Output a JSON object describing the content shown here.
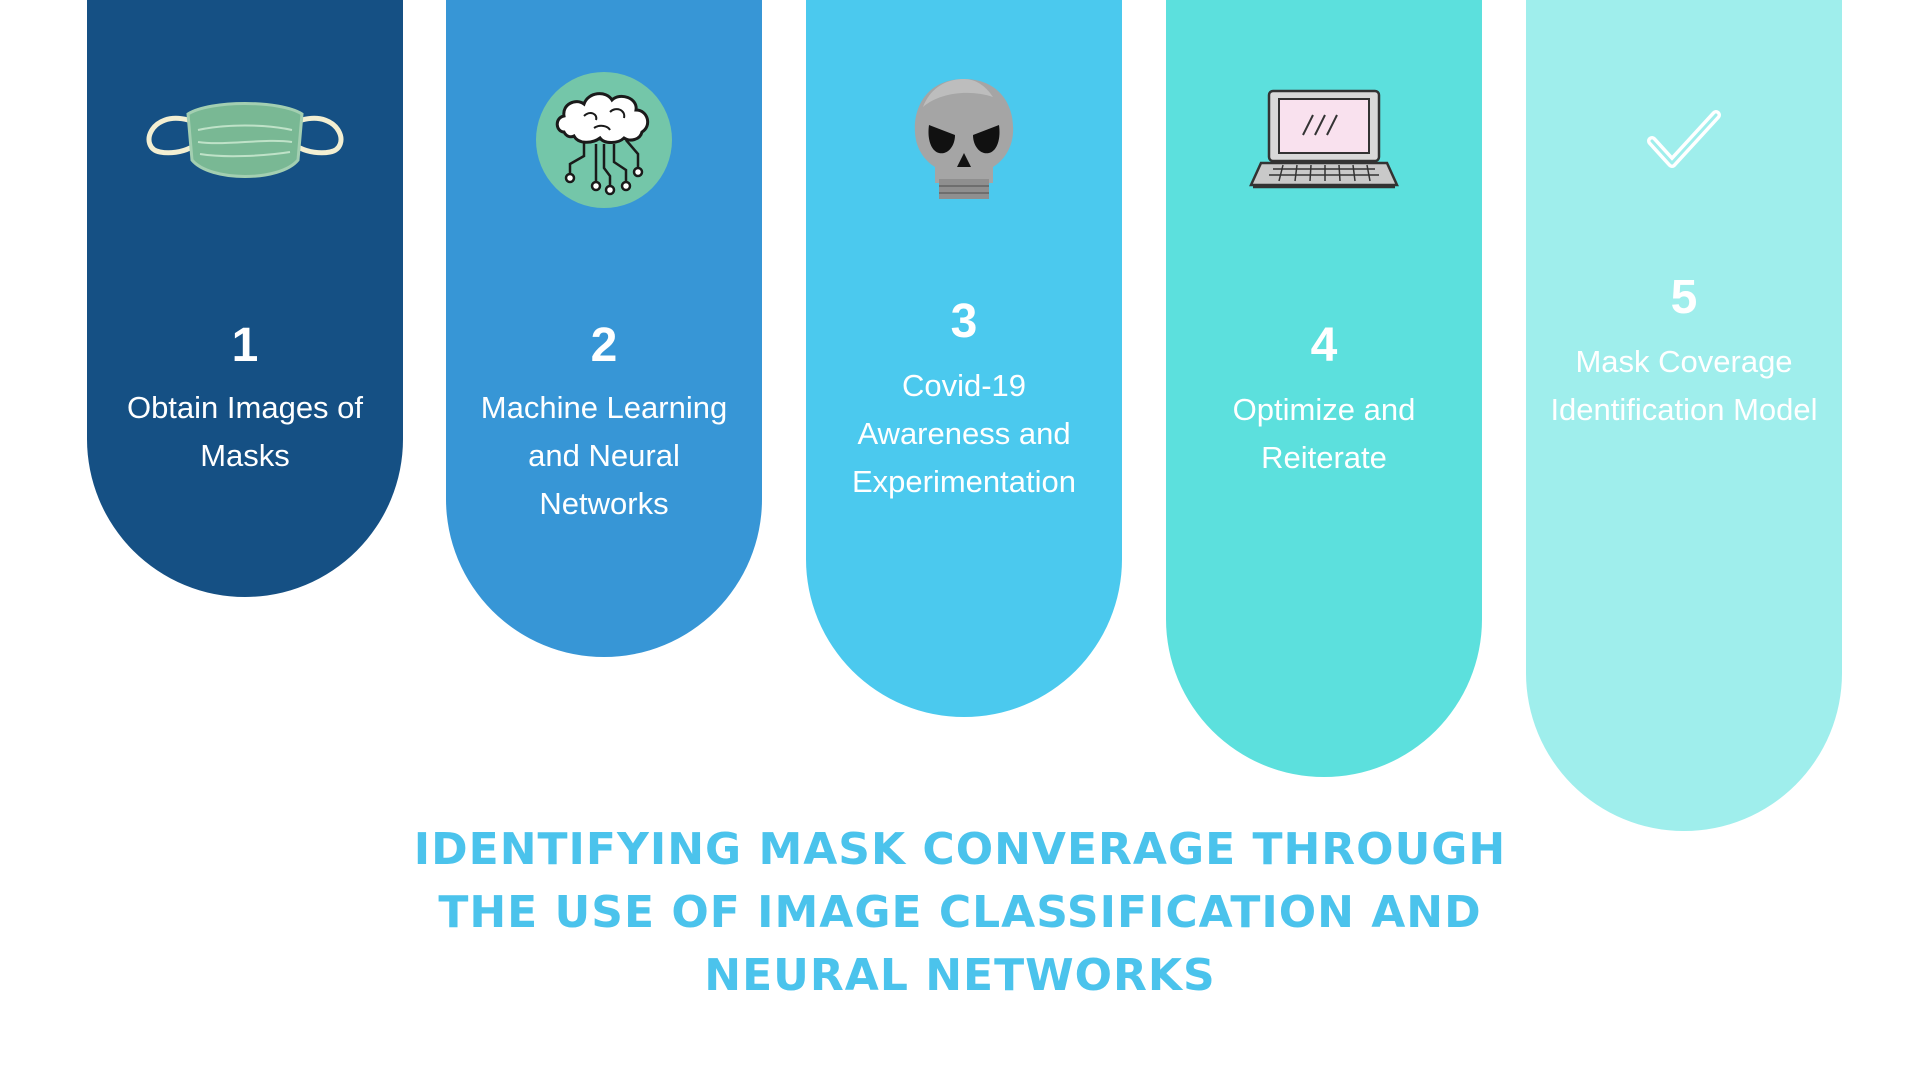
{
  "steps": [
    {
      "number": "1",
      "label": "Obtain Images of Masks",
      "icon": "face-mask-icon",
      "color": "#155084"
    },
    {
      "number": "2",
      "label": "Machine Learning and Neural Networks",
      "icon": "brain-circuit-icon",
      "color": "#3796d6"
    },
    {
      "number": "3",
      "label": "Covid-19 Awareness and Experimentation",
      "icon": "skull-icon",
      "color": "#4bc9ee"
    },
    {
      "number": "4",
      "label": "Optimize and Reiterate",
      "icon": "laptop-icon",
      "color": "#5ce0dd"
    },
    {
      "number": "5",
      "label": "Mask Coverage Identification Model",
      "icon": "checkmark-icon",
      "color": "#9feeec"
    }
  ],
  "title": {
    "line1": "IDENTIFYING MASK CONVERAGE THROUGH",
    "line2": "THE USE OF IMAGE CLASSIFICATION AND",
    "line3": "NEURAL NETWORKS",
    "color": "#4bc3ec"
  }
}
